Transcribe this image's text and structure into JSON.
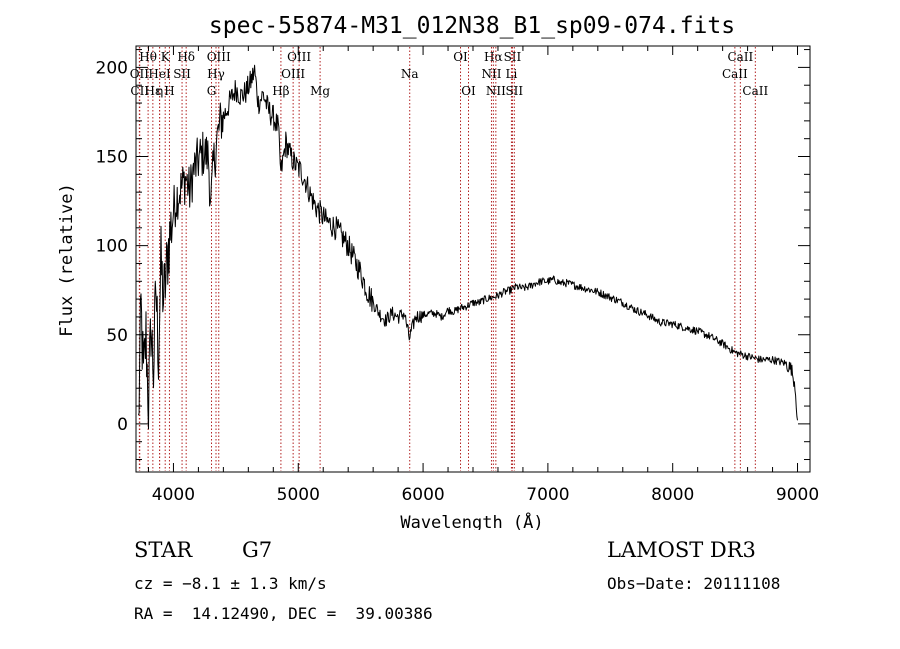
{
  "chart_data": {
    "type": "line",
    "title": "spec-55874-M31_012N38_B1_sp09-074.fits",
    "xlabel": "Wavelength (Å)",
    "ylabel": "Flux (relative)",
    "xlim": [
      3700,
      9100
    ],
    "ylim": [
      -27,
      212
    ],
    "xticks": [
      4000,
      5000,
      6000,
      7000,
      8000,
      9000
    ],
    "yticks": [
      0,
      50,
      100,
      150,
      200
    ],
    "series": [
      {
        "name": "spectrum",
        "x": [
          3720,
          3740,
          3760,
          3780,
          3800,
          3820,
          3840,
          3860,
          3880,
          3900,
          3920,
          3940,
          3960,
          3980,
          4000,
          4030,
          4060,
          4100,
          4130,
          4160,
          4200,
          4240,
          4280,
          4300,
          4320,
          4350,
          4380,
          4420,
          4460,
          4500,
          4540,
          4580,
          4620,
          4650,
          4680,
          4720,
          4760,
          4800,
          4840,
          4860,
          4900,
          4940,
          4980,
          5020,
          5060,
          5100,
          5140,
          5180,
          5220,
          5260,
          5300,
          5350,
          5400,
          5450,
          5500,
          5550,
          5600,
          5650,
          5700,
          5750,
          5800,
          5850,
          5890,
          5940,
          6000,
          6050,
          6100,
          6150,
          6200,
          6250,
          6300,
          6350,
          6400,
          6450,
          6500,
          6560,
          6600,
          6650,
          6700,
          6750,
          6800,
          6850,
          6900,
          6950,
          7000,
          7050,
          7100,
          7150,
          7200,
          7300,
          7400,
          7500,
          7600,
          7700,
          7800,
          7900,
          8000,
          8100,
          8200,
          8300,
          8400,
          8500,
          8600,
          8700,
          8800,
          8900,
          8950,
          8980,
          9000
        ],
        "y": [
          -2,
          65,
          25,
          50,
          10,
          55,
          30,
          75,
          40,
          90,
          70,
          82,
          100,
          110,
          120,
          128,
          132,
          138,
          130,
          142,
          148,
          152,
          150,
          122,
          145,
          160,
          170,
          175,
          182,
          188,
          184,
          186,
          192,
          198,
          180,
          185,
          176,
          172,
          166,
          140,
          158,
          150,
          145,
          142,
          136,
          128,
          122,
          118,
          114,
          112,
          110,
          105,
          100,
          92,
          85,
          75,
          68,
          62,
          58,
          62,
          60,
          62,
          48,
          60,
          61,
          62,
          62,
          60,
          64,
          63,
          65,
          66,
          68,
          68,
          70,
          71,
          72,
          74,
          75,
          77,
          76,
          77,
          79,
          80,
          80,
          81,
          79,
          79,
          78,
          76,
          74,
          71,
          68,
          64,
          61,
          57,
          56,
          54,
          52,
          49,
          45,
          40,
          38,
          36,
          36,
          34,
          31,
          22,
          2
        ]
      }
    ],
    "lines": [
      {
        "label": "Hθ",
        "x": 3797,
        "row": 0
      },
      {
        "label": "OII",
        "x": 3727,
        "row": 1
      },
      {
        "label": "CII",
        "x": 3730,
        "row": 2
      },
      {
        "label": "Hε",
        "x": 3835,
        "row": 2
      },
      {
        "label": "K",
        "x": 3934,
        "row": 0
      },
      {
        "label": "HeI",
        "x": 3889,
        "row": 1
      },
      {
        "label": "η",
        "x": 3889,
        "row": 2
      },
      {
        "label": "SII",
        "x": 4069,
        "row": 1
      },
      {
        "label": "H",
        "x": 3968,
        "row": 2
      },
      {
        "label": "Hδ",
        "x": 4102,
        "row": 0
      },
      {
        "label": "OIII",
        "x": 4363,
        "row": 0
      },
      {
        "label": "Hγ",
        "x": 4341,
        "row": 1
      },
      {
        "label": "G",
        "x": 4305,
        "row": 2
      },
      {
        "label": "OIII",
        "x": 5007,
        "row": 0
      },
      {
        "label": "OIII",
        "x": 4959,
        "row": 1
      },
      {
        "label": "Hβ",
        "x": 4861,
        "row": 2
      },
      {
        "label": "Mg",
        "x": 5175,
        "row": 2
      },
      {
        "label": "Na",
        "x": 5893,
        "row": 1
      },
      {
        "label": "OI",
        "x": 6300,
        "row": 0
      },
      {
        "label": "OI",
        "x": 6364,
        "row": 2
      },
      {
        "label": "Hα",
        "x": 6563,
        "row": 0
      },
      {
        "label": "SII",
        "x": 6716,
        "row": 0
      },
      {
        "label": "NII",
        "x": 6548,
        "row": 1
      },
      {
        "label": "Li",
        "x": 6708,
        "row": 1
      },
      {
        "label": "NII",
        "x": 6583,
        "row": 2
      },
      {
        "label": "SII",
        "x": 6731,
        "row": 2
      },
      {
        "label": "CaII",
        "x": 8542,
        "row": 0
      },
      {
        "label": "CaII",
        "x": 8498,
        "row": 1
      },
      {
        "label": "CaII",
        "x": 8662,
        "row": 2
      }
    ]
  },
  "info": {
    "class": "STAR",
    "subclass": "G7",
    "survey": "LAMOST DR3",
    "cz": "cz = −8.1 ± 1.3 km/s",
    "obs_date": "Obs−Date: 20111108",
    "radec": "RA =  14.12490, DEC =  39.00386"
  }
}
